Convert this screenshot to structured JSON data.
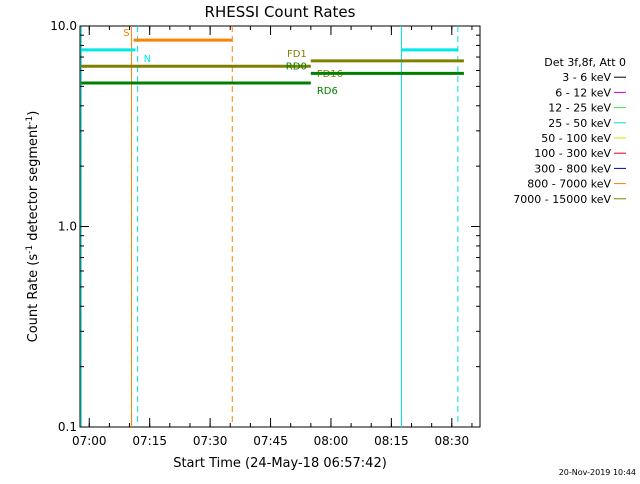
{
  "chart_data": {
    "type": "line",
    "title": "RHESSI Count Rates",
    "xlabel": "Start Time (24-May-18 06:57:42)",
    "ylabel_parts": [
      "Count Rate (s",
      "-1",
      " detector segment",
      "-1",
      ")"
    ],
    "ylabel": "Count Rate (s-1 detector segment-1)",
    "y_scale": "log",
    "ylim": [
      0.1,
      10.0
    ],
    "y_ticks": [
      {
        "value": 0.1,
        "label": "0.1"
      },
      {
        "value": 1.0,
        "label": "1.0"
      },
      {
        "value": 10.0,
        "label": "10.0"
      }
    ],
    "xlim": [
      "06:57:42",
      "08:37:00"
    ],
    "x_ticks": [
      {
        "value": "07:00",
        "label": "07:00"
      },
      {
        "value": "07:15",
        "label": "07:15"
      },
      {
        "value": "07:30",
        "label": "07:30"
      },
      {
        "value": "07:45",
        "label": "07:45"
      },
      {
        "value": "08:00",
        "label": "08:00"
      },
      {
        "value": "08:15",
        "label": "08:15"
      },
      {
        "value": "08:30",
        "label": "08:30"
      }
    ],
    "legend": {
      "placement": "right",
      "header": "Det 3f,8f, Att 0",
      "entries": [
        {
          "label": "3 - 6 keV",
          "color": "#000000"
        },
        {
          "label": "6 - 12 keV",
          "color": "#d000d0"
        },
        {
          "label": "12 - 25 keV",
          "color": "#40e040"
        },
        {
          "label": "25 - 50 keV",
          "color": "#00d8d8"
        },
        {
          "label": "50 - 100 keV",
          "color": "#e0e000"
        },
        {
          "label": "100 - 300 keV",
          "color": "#e00000"
        },
        {
          "label": "300 - 800 keV",
          "color": "#0000c0"
        },
        {
          "label": "800 - 7000 keV",
          "color": "#ff8000"
        },
        {
          "label": "7000 - 15000 keV",
          "color": "#808000"
        }
      ]
    },
    "vlines": [
      {
        "time": "06:58:00",
        "color": "#00e0e0",
        "style": "solid"
      },
      {
        "time": "07:10:30",
        "color": "#ff8000",
        "style": "solid"
      },
      {
        "time": "07:12:00",
        "color": "#00e0e0",
        "style": "dashed"
      },
      {
        "time": "07:35:30",
        "color": "#ff8000",
        "style": "dashed"
      },
      {
        "time": "08:17:30",
        "color": "#00e0e0",
        "style": "solid"
      },
      {
        "time": "08:31:30",
        "color": "#00e0e0",
        "style": "dashed"
      }
    ],
    "segments": [
      {
        "start": "06:58:00",
        "end": "07:11:30",
        "value": 7.6,
        "color": "#00e8e8",
        "label": "N",
        "label_pos": "end-below"
      },
      {
        "start": "08:17:30",
        "end": "08:31:30",
        "value": 7.6,
        "color": "#00e8e8",
        "label": "",
        "label_pos": ""
      },
      {
        "start": "07:11:00",
        "end": "07:35:30",
        "value": 8.5,
        "color": "#ff8000",
        "label": "S",
        "label_pos": "start-left"
      },
      {
        "start": "07:55:00",
        "end": "08:33:00",
        "value": 6.7,
        "color": "#808000",
        "label": "FD1",
        "label_pos": "start-left"
      },
      {
        "start": "06:58:00",
        "end": "07:55:00",
        "value": 6.3,
        "color": "#808000",
        "label": "FD16",
        "label_pos": "end-right"
      },
      {
        "start": "07:55:00",
        "end": "08:33:00",
        "value": 5.8,
        "color": "#008000",
        "label": "RD0",
        "label_pos": "start-left"
      },
      {
        "start": "06:58:00",
        "end": "07:55:00",
        "value": 5.2,
        "color": "#008000",
        "label": "RD6",
        "label_pos": "end-right"
      }
    ]
  },
  "timestamp": "20-Nov-2019 10:44"
}
